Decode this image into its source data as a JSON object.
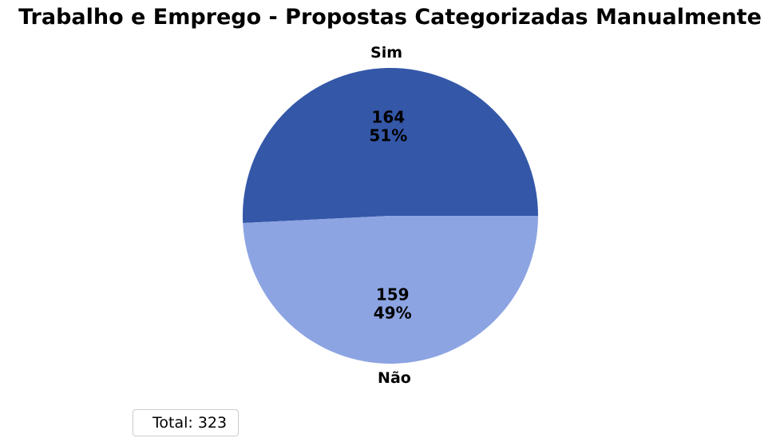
{
  "chart_data": {
    "type": "pie",
    "title": "Trabalho e Emprego - Propostas Categorizadas Manualmente",
    "slices": [
      {
        "label": "Sim",
        "value": 164,
        "percent_label": "51%",
        "color": "#3457a8"
      },
      {
        "label": "Não",
        "value": 159,
        "percent_label": "49%",
        "color": "#8da4e2"
      }
    ],
    "legend": {
      "text": "Total: 323",
      "placement": "lower-left"
    }
  }
}
